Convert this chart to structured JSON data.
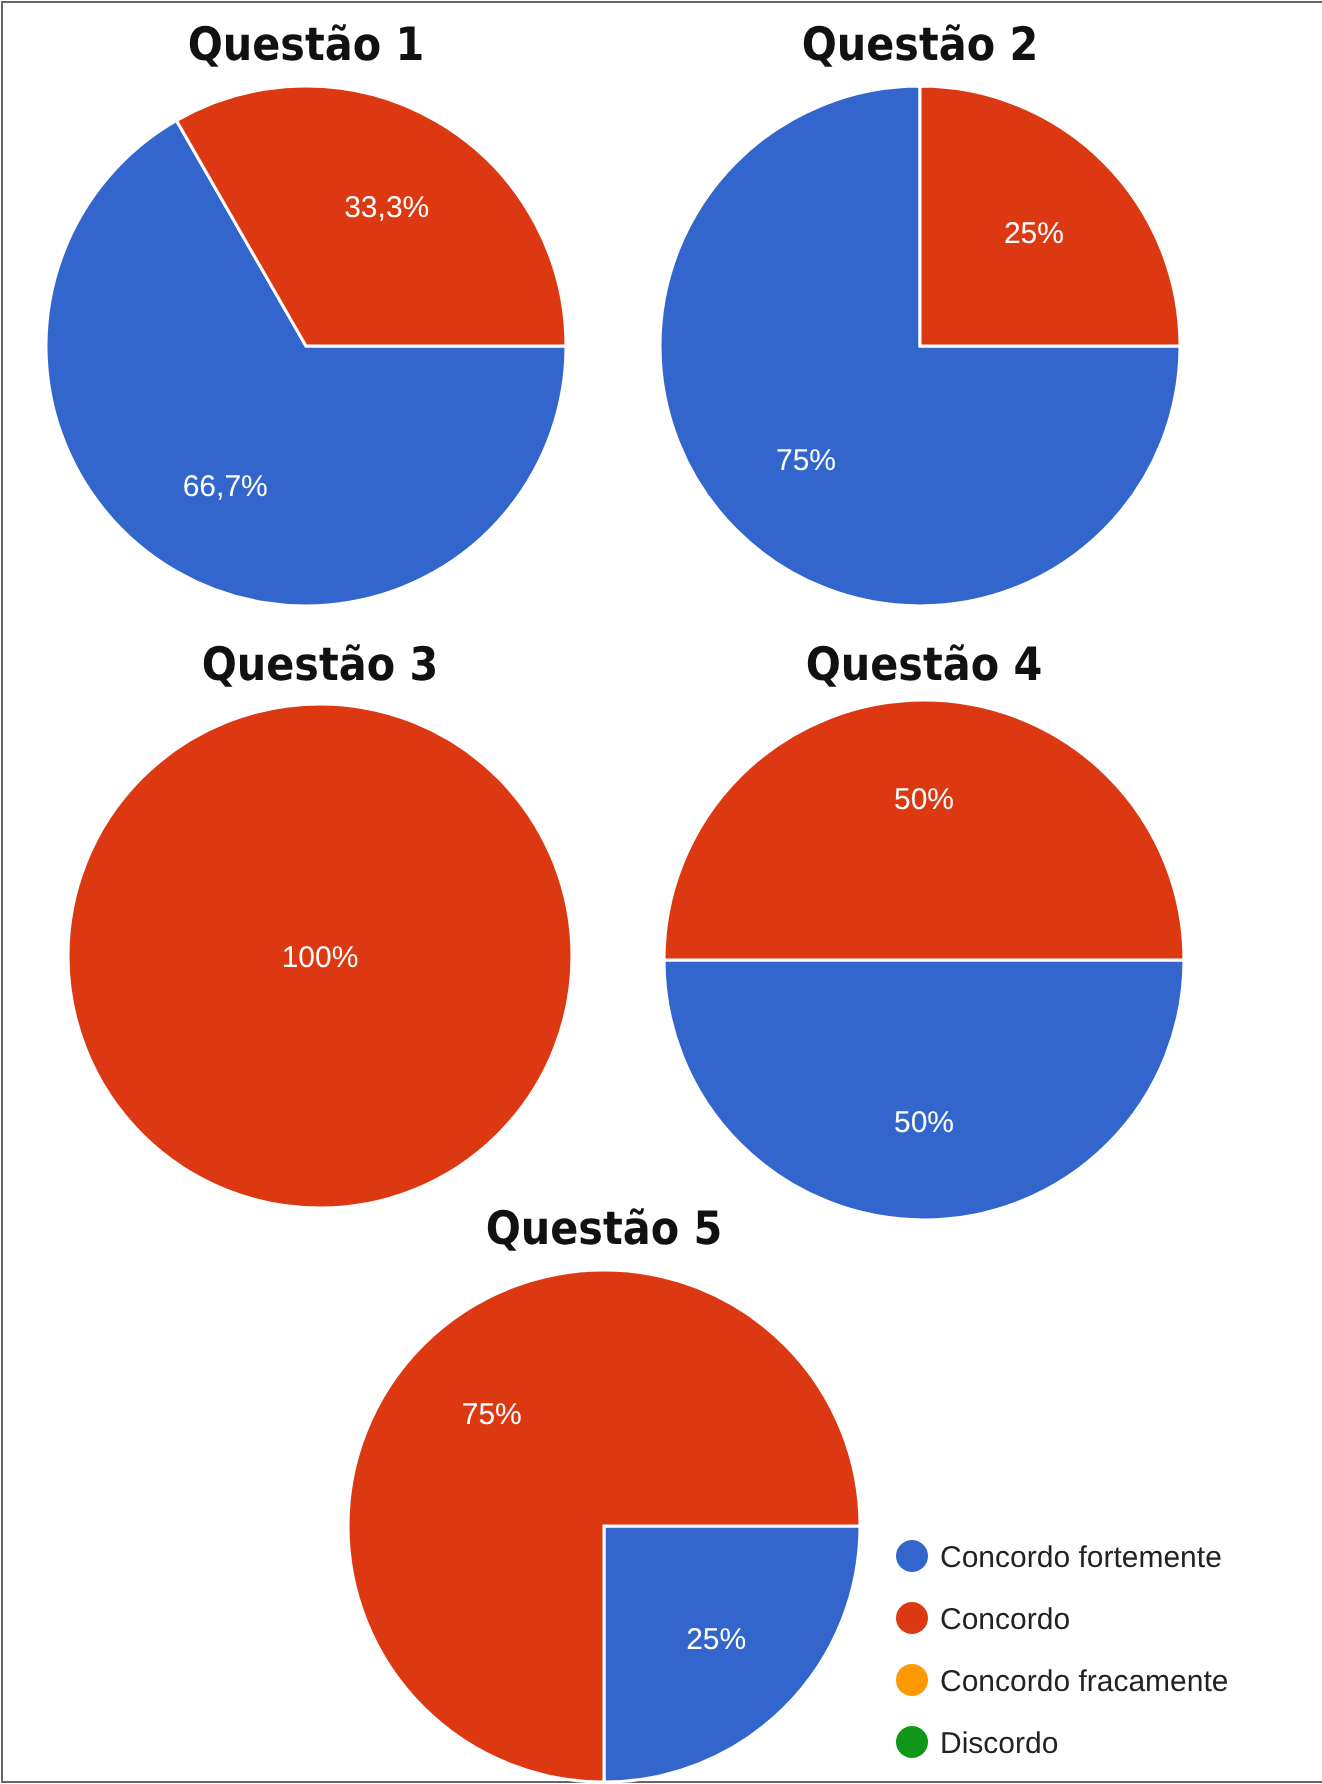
{
  "chart_data": [
    {
      "type": "pie",
      "title": "Questão 1",
      "categories": [
        null,
        null,
        null,
        null
      ],
      "values": [
        66.7,
        33.3,
        0,
        0
      ],
      "colors": [
        "#3366cc",
        "#dc3912",
        "#ff9900",
        "#109618"
      ],
      "value_labels": [
        "66,7%",
        "33,3%",
        null,
        null
      ]
    },
    {
      "type": "pie",
      "title": "Questão 2",
      "categories": [
        null,
        null,
        null,
        null
      ],
      "values": [
        75,
        25,
        0,
        0
      ],
      "colors": [
        "#3366cc",
        "#dc3912",
        "#ff9900",
        "#109618"
      ],
      "value_labels": [
        "75%",
        "25%",
        null,
        null
      ]
    },
    {
      "type": "pie",
      "title": "Questão 3",
      "categories": [
        null,
        null,
        null,
        null
      ],
      "values": [
        0,
        100,
        0,
        0
      ],
      "colors": [
        "#3366cc",
        "#dc3912",
        "#ff9900",
        "#109618"
      ],
      "value_labels": [
        null,
        "100%",
        null,
        null
      ]
    },
    {
      "type": "pie",
      "title": "Questão 4",
      "categories": [
        null,
        null,
        null,
        null
      ],
      "values": [
        50,
        50,
        0,
        0
      ],
      "colors": [
        "#3366cc",
        "#dc3912",
        "#ff9900",
        "#109618"
      ],
      "value_labels": [
        "50%",
        "50%",
        null,
        null
      ]
    },
    {
      "type": "pie",
      "title": "Questão 5",
      "categories": [
        "Concordo fortemente",
        "Concordo",
        "Concordo fracamente",
        "Discordo"
      ],
      "values": [
        25,
        75,
        0,
        0
      ],
      "colors": [
        "#3366cc",
        "#dc3912",
        "#ff9900",
        "#109618"
      ],
      "value_labels": [
        "25%",
        "75%",
        null,
        null
      ],
      "legend": "right"
    }
  ]
}
